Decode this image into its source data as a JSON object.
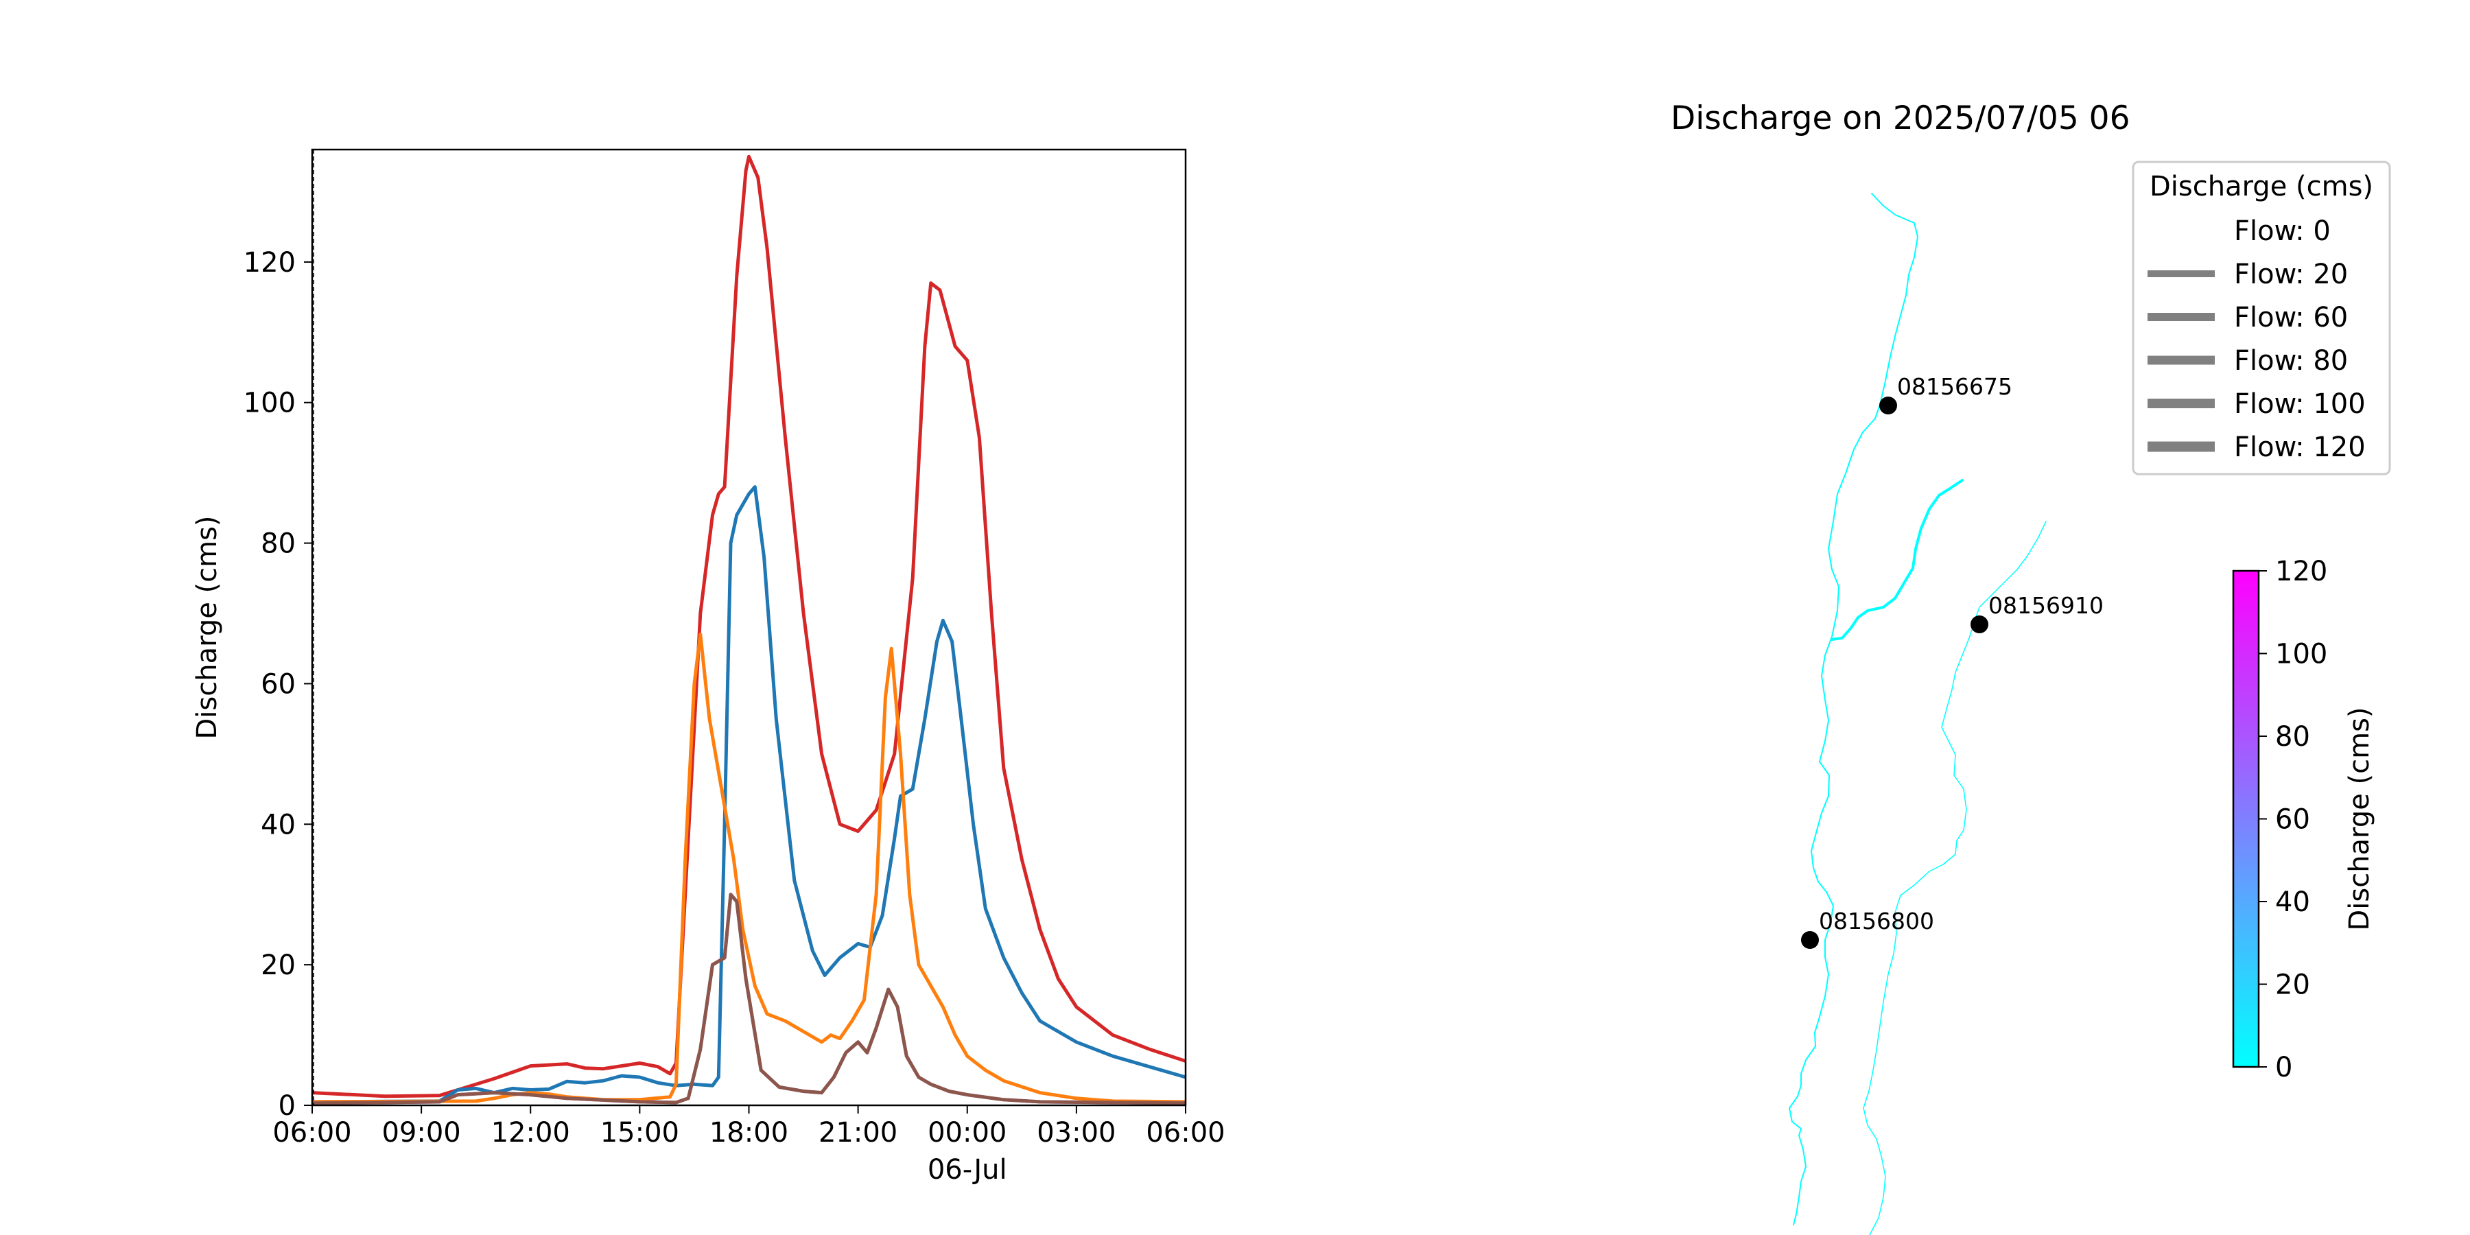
{
  "chart_data": [
    {
      "type": "line",
      "ylabel": "Discharge (cms)",
      "xlim": [
        "2025-07-05 06:00",
        "2025-07-06 06:00"
      ],
      "ylim": [
        0,
        136
      ],
      "x_ticks": [
        {
          "t": "2025-07-05 06:00",
          "label": "06:00"
        },
        {
          "t": "2025-07-05 09:00",
          "label": "09:00"
        },
        {
          "t": "2025-07-05 12:00",
          "label": "12:00"
        },
        {
          "t": "2025-07-05 15:00",
          "label": "15:00"
        },
        {
          "t": "2025-07-05 18:00",
          "label": "18:00"
        },
        {
          "t": "2025-07-05 21:00",
          "label": "21:00"
        },
        {
          "t": "2025-07-06 00:00",
          "label": "00:00"
        },
        {
          "t": "2025-07-06 03:00",
          "label": "03:00"
        },
        {
          "t": "2025-07-06 06:00",
          "label": "06:00"
        }
      ],
      "x_date_label": "06-Jul",
      "y_ticks": [
        0,
        20,
        40,
        60,
        80,
        100,
        120
      ],
      "grid": false,
      "series": [
        {
          "color": "#d62728",
          "points": [
            [
              "2025-07-05 06:00",
              1.8
            ],
            [
              "2025-07-05 08:00",
              1.3
            ],
            [
              "2025-07-05 09:30",
              1.4
            ],
            [
              "2025-07-05 10:00",
              2.2
            ],
            [
              "2025-07-05 11:00",
              3.8
            ],
            [
              "2025-07-05 12:00",
              5.6
            ],
            [
              "2025-07-05 13:00",
              5.9
            ],
            [
              "2025-07-05 13:30",
              5.3
            ],
            [
              "2025-07-05 14:00",
              5.2
            ],
            [
              "2025-07-05 14:30",
              5.6
            ],
            [
              "2025-07-05 15:00",
              6.0
            ],
            [
              "2025-07-05 15:30",
              5.5
            ],
            [
              "2025-07-05 15:50",
              4.5
            ],
            [
              "2025-07-05 16:00",
              6.0
            ],
            [
              "2025-07-05 16:20",
              38
            ],
            [
              "2025-07-05 16:40",
              70
            ],
            [
              "2025-07-05 17:00",
              84
            ],
            [
              "2025-07-05 17:10",
              87
            ],
            [
              "2025-07-05 17:20",
              88
            ],
            [
              "2025-07-05 17:40",
              118
            ],
            [
              "2025-07-05 17:55",
              133
            ],
            [
              "2025-07-05 18:00",
              135
            ],
            [
              "2025-07-05 18:15",
              132
            ],
            [
              "2025-07-05 18:30",
              122
            ],
            [
              "2025-07-05 19:00",
              95
            ],
            [
              "2025-07-05 19:30",
              70
            ],
            [
              "2025-07-05 20:00",
              50
            ],
            [
              "2025-07-05 20:30",
              40
            ],
            [
              "2025-07-05 21:00",
              39
            ],
            [
              "2025-07-05 21:30",
              42
            ],
            [
              "2025-07-05 22:00",
              50
            ],
            [
              "2025-07-05 22:30",
              75
            ],
            [
              "2025-07-05 22:50",
              108
            ],
            [
              "2025-07-05 23:00",
              117
            ],
            [
              "2025-07-05 23:15",
              116
            ],
            [
              "2025-07-05 23:40",
              108
            ],
            [
              "2025-07-06 00:00",
              106
            ],
            [
              "2025-07-06 00:20",
              95
            ],
            [
              "2025-07-06 00:40",
              70
            ],
            [
              "2025-07-06 01:00",
              48
            ],
            [
              "2025-07-06 01:30",
              35
            ],
            [
              "2025-07-06 02:00",
              25
            ],
            [
              "2025-07-06 02:30",
              18
            ],
            [
              "2025-07-06 03:00",
              14
            ],
            [
              "2025-07-06 04:00",
              10
            ],
            [
              "2025-07-06 05:00",
              8
            ],
            [
              "2025-07-06 06:00",
              6.3
            ]
          ]
        },
        {
          "color": "#1f77b4",
          "points": [
            [
              "2025-07-05 06:00",
              0.5
            ],
            [
              "2025-07-05 09:30",
              0.6
            ],
            [
              "2025-07-05 10:00",
              2.2
            ],
            [
              "2025-07-05 10:30",
              2.4
            ],
            [
              "2025-07-05 11:00",
              1.8
            ],
            [
              "2025-07-05 11:30",
              2.4
            ],
            [
              "2025-07-05 12:00",
              2.2
            ],
            [
              "2025-07-05 12:30",
              2.3
            ],
            [
              "2025-07-05 13:00",
              3.4
            ],
            [
              "2025-07-05 13:30",
              3.2
            ],
            [
              "2025-07-05 14:00",
              3.5
            ],
            [
              "2025-07-05 14:30",
              4.2
            ],
            [
              "2025-07-05 15:00",
              4.0
            ],
            [
              "2025-07-05 15:30",
              3.2
            ],
            [
              "2025-07-05 16:00",
              2.8
            ],
            [
              "2025-07-05 16:30",
              3.0
            ],
            [
              "2025-07-05 17:00",
              2.8
            ],
            [
              "2025-07-05 17:10",
              4.0
            ],
            [
              "2025-07-05 17:20",
              40
            ],
            [
              "2025-07-05 17:30",
              80
            ],
            [
              "2025-07-05 17:40",
              84
            ],
            [
              "2025-07-05 18:00",
              87
            ],
            [
              "2025-07-05 18:10",
              88
            ],
            [
              "2025-07-05 18:25",
              78
            ],
            [
              "2025-07-05 18:45",
              55
            ],
            [
              "2025-07-05 19:15",
              32
            ],
            [
              "2025-07-05 19:45",
              22
            ],
            [
              "2025-07-05 20:05",
              18.5
            ],
            [
              "2025-07-05 20:30",
              21
            ],
            [
              "2025-07-05 21:00",
              23
            ],
            [
              "2025-07-05 21:20",
              22.5
            ],
            [
              "2025-07-05 21:40",
              27
            ],
            [
              "2025-07-05 22:00",
              38
            ],
            [
              "2025-07-05 22:10",
              44
            ],
            [
              "2025-07-05 22:30",
              45
            ],
            [
              "2025-07-05 22:50",
              55
            ],
            [
              "2025-07-05 23:10",
              66
            ],
            [
              "2025-07-05 23:20",
              69
            ],
            [
              "2025-07-05 23:35",
              66
            ],
            [
              "2025-07-05 23:50",
              55
            ],
            [
              "2025-07-06 00:10",
              40
            ],
            [
              "2025-07-06 00:30",
              28
            ],
            [
              "2025-07-06 01:00",
              21
            ],
            [
              "2025-07-06 01:30",
              16
            ],
            [
              "2025-07-06 02:00",
              12
            ],
            [
              "2025-07-06 03:00",
              9
            ],
            [
              "2025-07-06 04:00",
              7
            ],
            [
              "2025-07-06 05:00",
              5.5
            ],
            [
              "2025-07-06 06:00",
              4
            ]
          ]
        },
        {
          "color": "#ff7f0e",
          "points": [
            [
              "2025-07-05 06:00",
              0.5
            ],
            [
              "2025-07-05 10:30",
              0.6
            ],
            [
              "2025-07-05 11:00",
              1.0
            ],
            [
              "2025-07-05 11:30",
              1.5
            ],
            [
              "2025-07-05 12:00",
              1.8
            ],
            [
              "2025-07-05 12:30",
              1.6
            ],
            [
              "2025-07-05 13:00",
              1.2
            ],
            [
              "2025-07-05 14:00",
              0.8
            ],
            [
              "2025-07-05 15:00",
              0.8
            ],
            [
              "2025-07-05 15:50",
              1.2
            ],
            [
              "2025-07-05 16:00",
              3
            ],
            [
              "2025-07-05 16:15",
              35
            ],
            [
              "2025-07-05 16:30",
              60
            ],
            [
              "2025-07-05 16:40",
              67
            ],
            [
              "2025-07-05 16:55",
              55
            ],
            [
              "2025-07-05 17:15",
              45
            ],
            [
              "2025-07-05 17:35",
              35
            ],
            [
              "2025-07-05 17:50",
              25
            ],
            [
              "2025-07-05 18:10",
              17
            ],
            [
              "2025-07-05 18:30",
              13
            ],
            [
              "2025-07-05 19:00",
              12
            ],
            [
              "2025-07-05 19:30",
              10.5
            ],
            [
              "2025-07-05 20:00",
              9
            ],
            [
              "2025-07-05 20:15",
              10
            ],
            [
              "2025-07-05 20:30",
              9.5
            ],
            [
              "2025-07-05 20:50",
              12
            ],
            [
              "2025-07-05 21:10",
              15
            ],
            [
              "2025-07-05 21:30",
              30
            ],
            [
              "2025-07-05 21:45",
              58
            ],
            [
              "2025-07-05 21:55",
              65
            ],
            [
              "2025-07-05 22:10",
              50
            ],
            [
              "2025-07-05 22:25",
              30
            ],
            [
              "2025-07-05 22:40",
              20
            ],
            [
              "2025-07-05 23:00",
              17
            ],
            [
              "2025-07-05 23:20",
              14
            ],
            [
              "2025-07-05 23:40",
              10
            ],
            [
              "2025-07-06 00:00",
              7
            ],
            [
              "2025-07-06 00:30",
              5
            ],
            [
              "2025-07-06 01:00",
              3.5
            ],
            [
              "2025-07-06 02:00",
              1.8
            ],
            [
              "2025-07-06 03:00",
              1.0
            ],
            [
              "2025-07-06 04:00",
              0.6
            ],
            [
              "2025-07-06 06:00",
              0.5
            ]
          ]
        },
        {
          "color": "#9467bd",
          "points": [
            [
              "2025-07-05 06:00",
              0.3
            ],
            [
              "2025-07-05 09:30",
              0.5
            ],
            [
              "2025-07-05 10:00",
              1.5
            ],
            [
              "2025-07-05 11:00",
              1.8
            ],
            [
              "2025-07-05 12:00",
              1.5
            ],
            [
              "2025-07-05 13:00",
              1.0
            ],
            [
              "2025-07-05 15:00",
              0.5
            ],
            [
              "2025-07-05 16:00",
              0.4
            ],
            [
              "2025-07-05 16:20",
              1
            ],
            [
              "2025-07-05 16:40",
              8
            ],
            [
              "2025-07-05 17:00",
              20
            ],
            [
              "2025-07-05 17:20",
              21
            ],
            [
              "2025-07-05 17:30",
              30
            ],
            [
              "2025-07-05 17:40",
              29
            ],
            [
              "2025-07-05 17:55",
              18
            ],
            [
              "2025-07-05 18:20",
              5
            ],
            [
              "2025-07-05 18:50",
              2.6
            ],
            [
              "2025-07-05 19:30",
              2.0
            ],
            [
              "2025-07-05 20:00",
              1.8
            ],
            [
              "2025-07-05 20:20",
              4
            ],
            [
              "2025-07-05 20:40",
              7.5
            ],
            [
              "2025-07-05 21:00",
              9
            ],
            [
              "2025-07-05 21:15",
              7.5
            ],
            [
              "2025-07-05 21:30",
              11
            ],
            [
              "2025-07-05 21:50",
              16.5
            ],
            [
              "2025-07-05 22:05",
              14
            ],
            [
              "2025-07-05 22:20",
              7
            ],
            [
              "2025-07-05 22:40",
              4
            ],
            [
              "2025-07-05 23:00",
              3
            ],
            [
              "2025-07-05 23:30",
              2
            ],
            [
              "2025-07-06 00:00",
              1.5
            ],
            [
              "2025-07-06 01:00",
              0.8
            ],
            [
              "2025-07-06 02:00",
              0.5
            ],
            [
              "2025-07-06 06:00",
              0.3
            ]
          ]
        },
        {
          "color": "#8c564b",
          "points": [
            [
              "2025-07-05 06:00",
              0.3
            ],
            [
              "2025-07-05 09:30",
              0.5
            ],
            [
              "2025-07-05 10:00",
              1.5
            ],
            [
              "2025-07-05 11:00",
              1.8
            ],
            [
              "2025-07-05 12:00",
              1.5
            ],
            [
              "2025-07-05 13:00",
              1.0
            ],
            [
              "2025-07-05 15:00",
              0.5
            ],
            [
              "2025-07-05 16:00",
              0.4
            ],
            [
              "2025-07-05 16:20",
              1
            ],
            [
              "2025-07-05 16:40",
              8
            ],
            [
              "2025-07-05 17:00",
              20
            ],
            [
              "2025-07-05 17:20",
              21
            ],
            [
              "2025-07-05 17:30",
              30
            ],
            [
              "2025-07-05 17:40",
              29
            ],
            [
              "2025-07-05 17:55",
              18
            ],
            [
              "2025-07-05 18:20",
              5
            ],
            [
              "2025-07-05 18:50",
              2.6
            ],
            [
              "2025-07-05 19:30",
              2.0
            ],
            [
              "2025-07-05 20:00",
              1.8
            ],
            [
              "2025-07-05 20:20",
              4
            ],
            [
              "2025-07-05 20:40",
              7.5
            ],
            [
              "2025-07-05 21:00",
              9
            ],
            [
              "2025-07-05 21:15",
              7.5
            ],
            [
              "2025-07-05 21:30",
              11
            ],
            [
              "2025-07-05 21:50",
              16.5
            ],
            [
              "2025-07-05 22:05",
              14
            ],
            [
              "2025-07-05 22:20",
              7
            ],
            [
              "2025-07-05 22:40",
              4
            ],
            [
              "2025-07-05 23:00",
              3
            ],
            [
              "2025-07-05 23:30",
              2
            ],
            [
              "2025-07-06 00:00",
              1.5
            ],
            [
              "2025-07-06 01:00",
              0.8
            ],
            [
              "2025-07-06 02:00",
              0.5
            ],
            [
              "2025-07-06 06:00",
              0.3
            ]
          ]
        }
      ]
    },
    {
      "type": "map",
      "title": "Discharge on 2025/07/05 06",
      "legend": {
        "title": "Discharge (cms)",
        "color": "#808080",
        "entries": [
          {
            "label": "Flow: 0",
            "width": 0
          },
          {
            "label": "Flow: 20",
            "width": 10
          },
          {
            "label": "Flow: 60",
            "width": 12
          },
          {
            "label": "Flow: 80",
            "width": 13
          },
          {
            "label": "Flow: 100",
            "width": 14
          },
          {
            "label": "Flow: 120",
            "width": 15
          }
        ]
      },
      "colorbar": {
        "label": "Discharge (cms)",
        "range": [
          0,
          120
        ],
        "ticks": [
          0,
          20,
          40,
          60,
          80,
          100,
          120
        ],
        "colors": [
          "#00ffff",
          "#ff00ff"
        ]
      },
      "stream_color": "#00ffff",
      "gauges": [
        {
          "id": "08156675"
        },
        {
          "id": "08156910"
        },
        {
          "id": "08156800"
        }
      ]
    }
  ]
}
